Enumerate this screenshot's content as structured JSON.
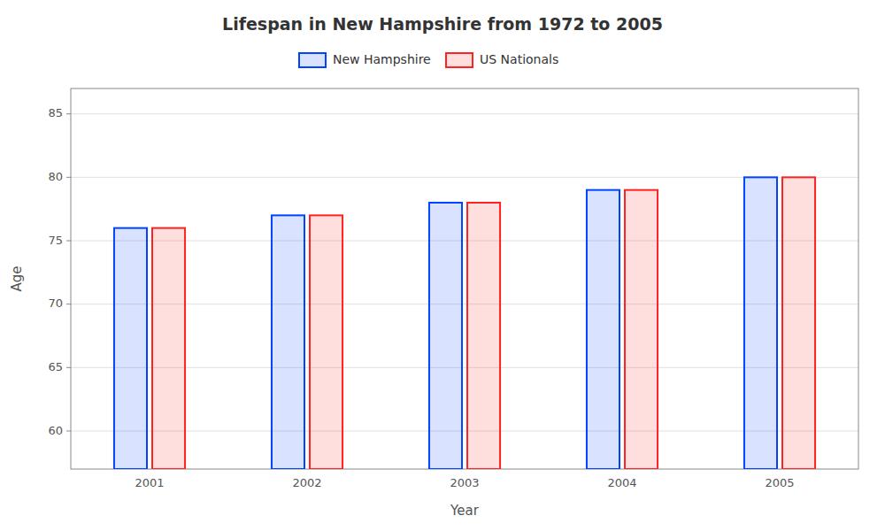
{
  "chart_data": {
    "type": "bar",
    "title": "Lifespan in New Hampshire from 1972 to 2005",
    "xlabel": "Year",
    "ylabel": "Age",
    "categories": [
      "2001",
      "2002",
      "2003",
      "2004",
      "2005"
    ],
    "series": [
      {
        "name": "New Hampshire",
        "color": "#0044ff",
        "values": [
          76,
          77,
          78,
          79,
          80
        ]
      },
      {
        "name": "US Nationals",
        "color": "#ff2222",
        "values": [
          76,
          77,
          78,
          79,
          80
        ]
      }
    ],
    "ylim": [
      57,
      87
    ],
    "yticks": [
      60,
      65,
      70,
      75,
      80,
      85
    ],
    "grid": true,
    "legend": "top"
  }
}
